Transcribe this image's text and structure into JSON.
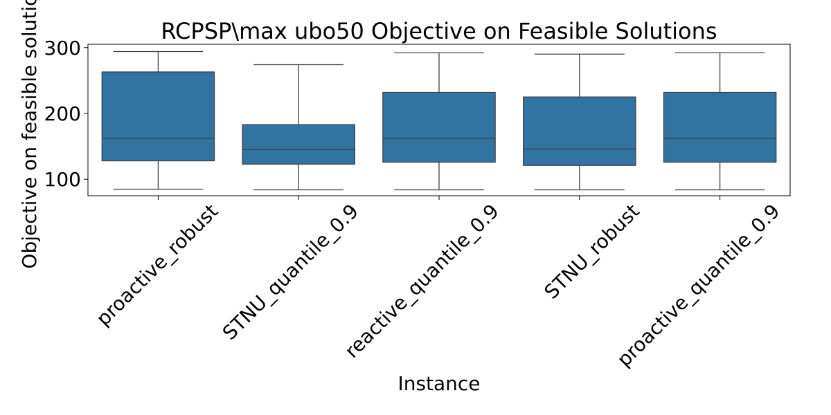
{
  "chart_data": {
    "type": "box",
    "title": "RCPSP\\max ubo50 Objective on Feasible Solutions",
    "xlabel": "Instance",
    "ylabel": "Objective on feasible solutions",
    "ylim": [
      75,
      305
    ],
    "yticks": [
      100,
      200,
      300
    ],
    "box_color": "#3274a1",
    "line_color": "#3f3f3f",
    "categories": [
      "proactive_robust",
      "STNU_quantile_0.9",
      "reactive_quantile_0.9",
      "STNU_robust",
      "proactive_quantile_0.9"
    ],
    "boxes": [
      {
        "min": 85,
        "q1": 128,
        "median": 162,
        "q3": 263,
        "max": 294
      },
      {
        "min": 84,
        "q1": 123,
        "median": 145,
        "q3": 183,
        "max": 274
      },
      {
        "min": 84,
        "q1": 126,
        "median": 162,
        "q3": 232,
        "max": 292
      },
      {
        "min": 84,
        "q1": 121,
        "median": 146,
        "q3": 225,
        "max": 290
      },
      {
        "min": 84,
        "q1": 126,
        "median": 162,
        "q3": 232,
        "max": 292
      }
    ]
  }
}
